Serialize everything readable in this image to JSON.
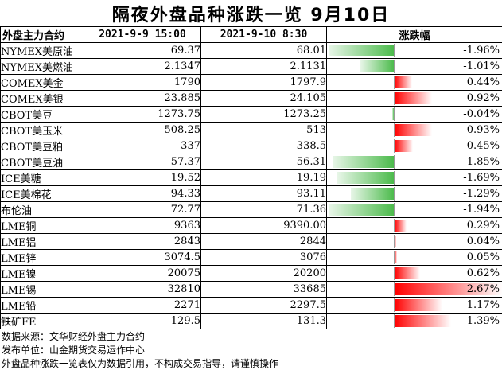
{
  "title": "隔夜外盘品种涨跌一览 9月10日",
  "header": {
    "col_name": "外盘主力合约",
    "col_prev": "2021-9-9 15:00",
    "col_curr": "2021-9-10 8:30",
    "col_change": "涨跌幅"
  },
  "rows": [
    {
      "name": "NYMEX美原油",
      "prev": "69.37",
      "curr": "68.01",
      "change": "-1.96%",
      "change_value": -1.96
    },
    {
      "name": "NYMEX美燃油",
      "prev": "2.1347",
      "curr": "2.1131",
      "change": "-1.01%",
      "change_value": -1.01
    },
    {
      "name": "COMEX美金",
      "prev": "1790",
      "curr": "1797.9",
      "change": "0.44%",
      "change_value": 0.44
    },
    {
      "name": "COMEX美银",
      "prev": "23.885",
      "curr": "24.105",
      "change": "0.92%",
      "change_value": 0.92
    },
    {
      "name": "CBOT美豆",
      "prev": "1273.75",
      "curr": "1273.25",
      "change": "-0.04%",
      "change_value": -0.04
    },
    {
      "name": "CBOT美玉米",
      "prev": "508.25",
      "curr": "513",
      "change": "0.93%",
      "change_value": 0.93
    },
    {
      "name": "CBOT美豆粕",
      "prev": "337",
      "curr": "338.5",
      "change": "0.45%",
      "change_value": 0.45
    },
    {
      "name": "CBOT美豆油",
      "prev": "57.37",
      "curr": "56.31",
      "change": "-1.85%",
      "change_value": -1.85
    },
    {
      "name": "ICE美糖",
      "prev": "19.52",
      "curr": "19.19",
      "change": "-1.69%",
      "change_value": -1.69
    },
    {
      "name": "ICE美棉花",
      "prev": "94.33",
      "curr": "93.11",
      "change": "-1.29%",
      "change_value": -1.29
    },
    {
      "name": "布伦油",
      "prev": "72.77",
      "curr": "71.36",
      "change": "-1.94%",
      "change_value": -1.94
    },
    {
      "name": "LME铜",
      "prev": "9363",
      "curr": "9390.00",
      "change": "0.29%",
      "change_value": 0.29
    },
    {
      "name": "LME铝",
      "prev": "2843",
      "curr": "2844",
      "change": "0.04%",
      "change_value": 0.04
    },
    {
      "name": "LME锌",
      "prev": "3074.5",
      "curr": "3076",
      "change": "0.05%",
      "change_value": 0.05
    },
    {
      "name": "LME镍",
      "prev": "20075",
      "curr": "20200",
      "change": "0.62%",
      "change_value": 0.62
    },
    {
      "name": "LME锡",
      "prev": "32810",
      "curr": "33685",
      "change": "2.67%",
      "change_value": 2.67
    },
    {
      "name": "LME铅",
      "prev": "2271",
      "curr": "2297.5",
      "change": "1.17%",
      "change_value": 1.17
    },
    {
      "name": "铁矿FE",
      "prev": "129.5",
      "curr": "131.3",
      "change": "1.39%",
      "change_value": 1.39
    }
  ],
  "colors": {
    "negative": "#4cbb4c",
    "positive": "#ff0000"
  },
  "footer": {
    "source": "数据来源：文华财经外盘主力合约",
    "publisher": "发布单位：山金期货交易运作中心",
    "disclaimer": "外盘品种涨跌一览表仅为数据引用，不构成交易指导，请谨慎操作"
  }
}
